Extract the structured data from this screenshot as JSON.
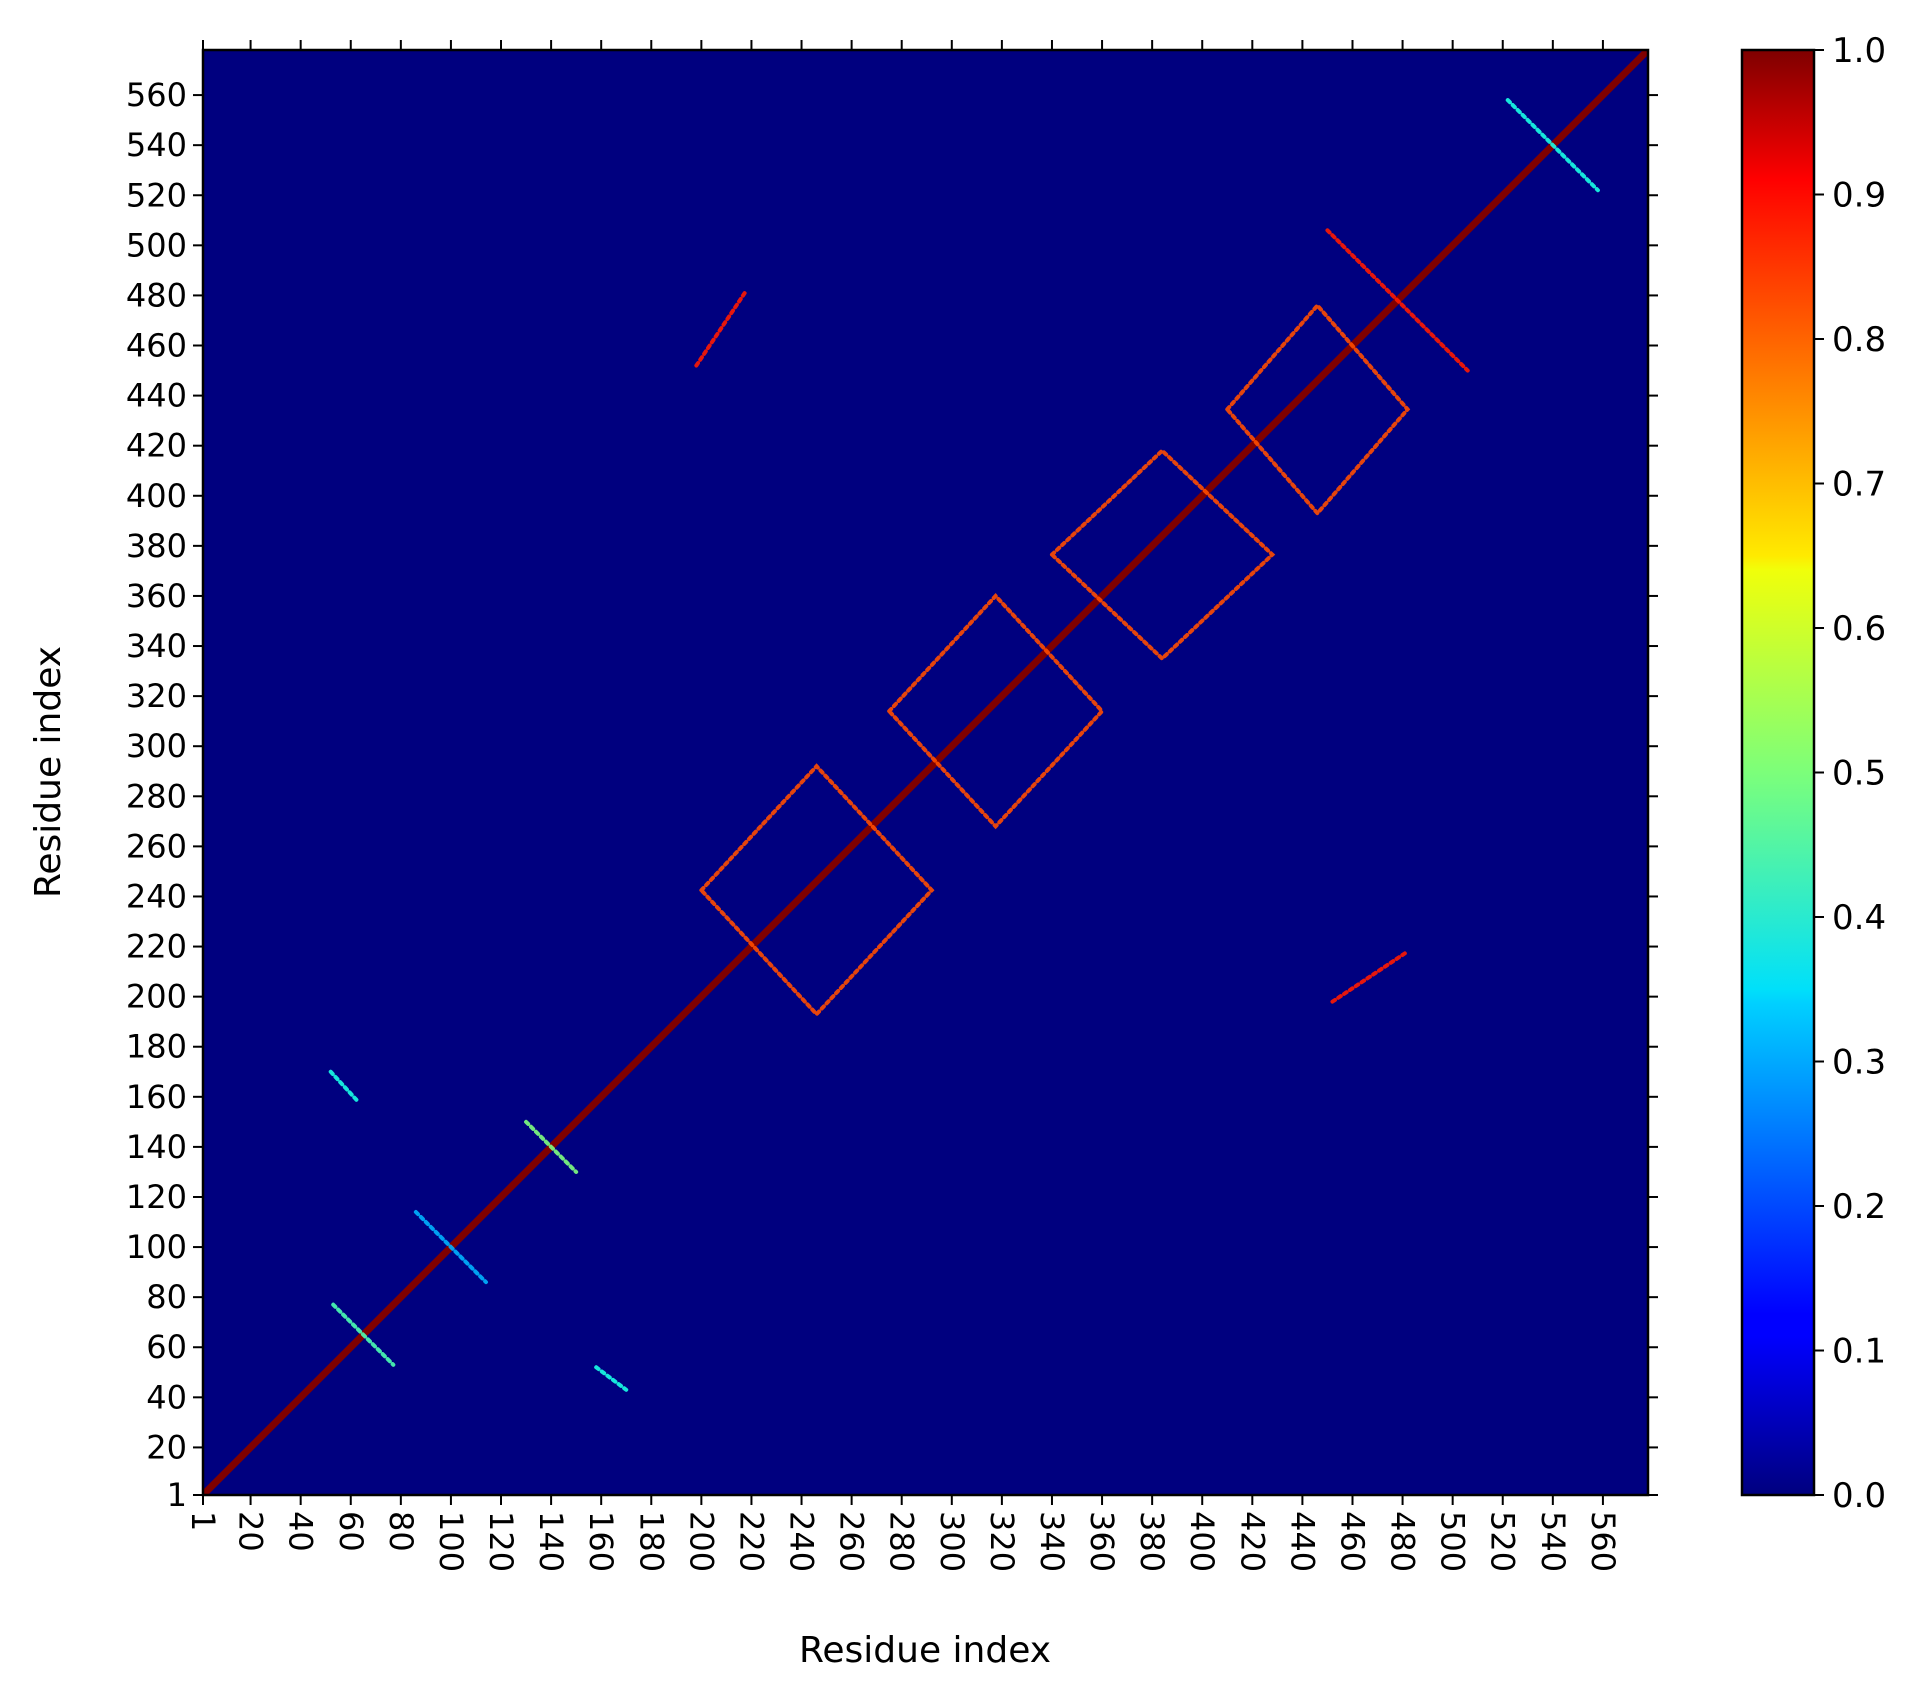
{
  "chart_data": {
    "type": "heatmap",
    "title": "",
    "xlabel": "Residue index",
    "ylabel": "Residue index",
    "xlim": [
      1,
      578
    ],
    "ylim": [
      1,
      578
    ],
    "x_ticks": [
      "1",
      "20",
      "40",
      "60",
      "80",
      "100",
      "120",
      "140",
      "160",
      "180",
      "200",
      "220",
      "240",
      "260",
      "280",
      "300",
      "320",
      "340",
      "360",
      "380",
      "400",
      "420",
      "440",
      "460",
      "480",
      "500",
      "520",
      "540",
      "560"
    ],
    "y_ticks": [
      "1",
      "20",
      "40",
      "60",
      "80",
      "100",
      "120",
      "140",
      "160",
      "180",
      "200",
      "220",
      "240",
      "260",
      "280",
      "300",
      "320",
      "340",
      "360",
      "380",
      "400",
      "420",
      "440",
      "460",
      "480",
      "500",
      "520",
      "540",
      "560"
    ],
    "colorbar": {
      "range": [
        0.0,
        1.0
      ],
      "ticks": [
        "0.0",
        "0.1",
        "0.2",
        "0.3",
        "0.4",
        "0.5",
        "0.6",
        "0.7",
        "0.8",
        "0.9",
        "1.0"
      ],
      "colormap": "jet"
    },
    "background_value": 0.03,
    "features": [
      {
        "kind": "diagonal",
        "from": 1,
        "to": 578,
        "value": 1.0
      },
      {
        "kind": "antidiagonal",
        "center": [
          65,
          65
        ],
        "extent": 12,
        "value": 0.45
      },
      {
        "kind": "antidiagonal",
        "center": [
          100,
          100
        ],
        "extent": 14,
        "value": 0.3
      },
      {
        "kind": "antidiagonal",
        "center": [
          140,
          140
        ],
        "extent": 10,
        "value": 0.5
      },
      {
        "kind": "line",
        "from": [
          52,
          170
        ],
        "to": [
          63,
          158
        ],
        "value": 0.4
      },
      {
        "kind": "line",
        "from": [
          158,
          52
        ],
        "to": [
          170,
          43
        ],
        "value": 0.4
      },
      {
        "kind": "square",
        "x_range": [
          200,
          292
        ],
        "y_range": [
          193,
          292
        ],
        "value": 0.8
      },
      {
        "kind": "square",
        "x_range": [
          275,
          360
        ],
        "y_range": [
          268,
          360
        ],
        "value": 0.8
      },
      {
        "kind": "square",
        "x_range": [
          340,
          428
        ],
        "y_range": [
          335,
          418
        ],
        "value": 0.8
      },
      {
        "kind": "square",
        "x_range": [
          410,
          482
        ],
        "y_range": [
          393,
          476
        ],
        "value": 0.8
      },
      {
        "kind": "cross",
        "center": [
          478,
          478
        ],
        "extent": 28,
        "value": 0.85
      },
      {
        "kind": "line",
        "from": [
          198,
          452
        ],
        "to": [
          218,
          482
        ],
        "value": 0.85
      },
      {
        "kind": "line",
        "from": [
          452,
          198
        ],
        "to": [
          482,
          218
        ],
        "value": 0.85
      },
      {
        "kind": "cross",
        "center": [
          540,
          540
        ],
        "extent": 18,
        "value": 0.4
      }
    ]
  }
}
